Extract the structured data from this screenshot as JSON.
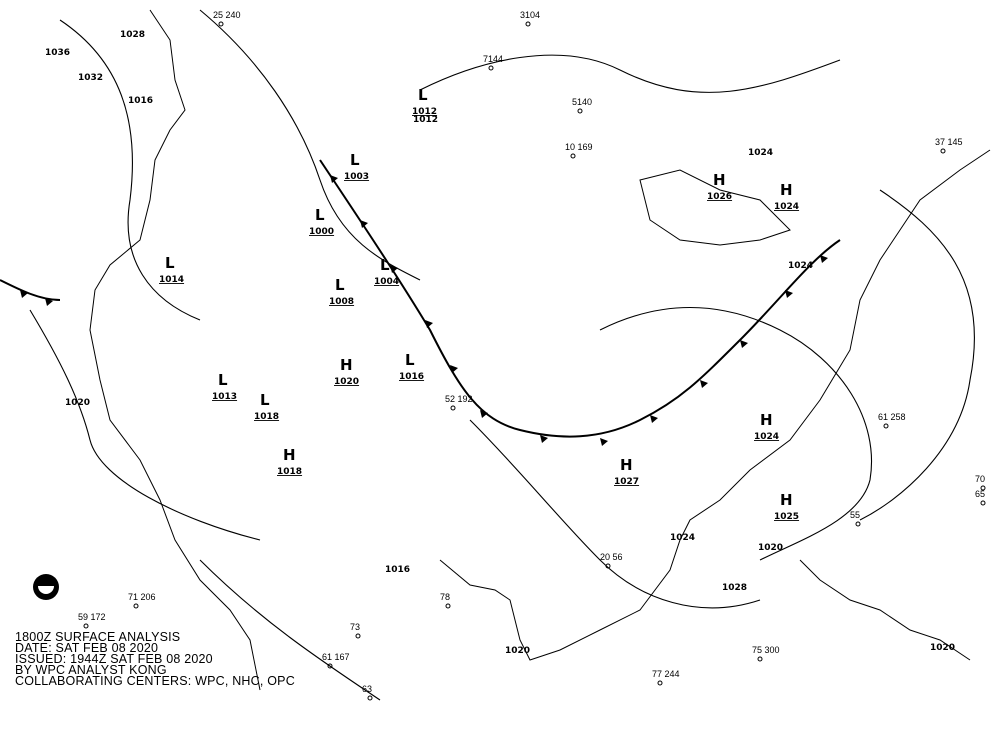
{
  "caption": {
    "line1": "1800Z SURFACE ANALYSIS",
    "line2": "DATE: SAT FEB 08 2020",
    "line3": "ISSUED: 1944Z SAT FEB 08 2020",
    "line4": "BY WPC ANALYST KONG",
    "line5": "COLLABORATING CENTERS: WPC, NHC, OPC"
  },
  "colors": {
    "ink": "#000000",
    "background": "#ffffff"
  },
  "pressure_centers": [
    {
      "type": "H",
      "value": "1024"
    },
    {
      "type": "H",
      "value": "1025"
    },
    {
      "type": "H",
      "value": "1026"
    },
    {
      "type": "H",
      "value": "1027"
    },
    {
      "type": "H",
      "value": "1024"
    },
    {
      "type": "H",
      "value": "1018"
    },
    {
      "type": "H",
      "value": "1020"
    },
    {
      "type": "L",
      "value": "1012"
    },
    {
      "type": "L",
      "value": "1003"
    },
    {
      "type": "L",
      "value": "1000"
    },
    {
      "type": "L",
      "value": "1004"
    },
    {
      "type": "L",
      "value": "1014"
    },
    {
      "type": "L",
      "value": "1013"
    },
    {
      "type": "L",
      "value": "1016"
    },
    {
      "type": "L",
      "value": "1018"
    },
    {
      "type": "L",
      "value": "1008"
    }
  ],
  "isobar_labels": [
    "1036",
    "1032",
    "1028",
    "1016",
    "1012",
    "1024",
    "1020",
    "1016",
    "1020",
    "1024",
    "1028",
    "1020",
    "1024",
    "1020"
  ],
  "station_samples": [
    "25 240",
    "3104",
    "7144",
    "5140",
    "10 169",
    "37 145",
    "61 258",
    "70",
    "65",
    "75 300",
    "77 244",
    "59 172",
    "71 206",
    "73",
    "61 167",
    "63",
    "55",
    "78",
    "20 56",
    "52 192"
  ],
  "legend_logo": "NOAA"
}
